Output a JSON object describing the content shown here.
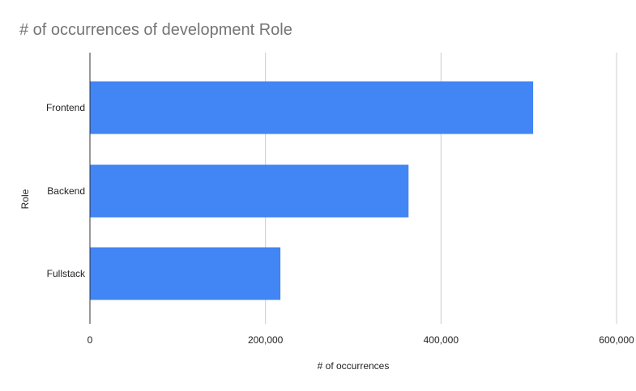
{
  "chart_data": {
    "type": "bar",
    "orientation": "horizontal",
    "title": "# of occurrences of development Role",
    "xlabel": "# of occurrences",
    "ylabel": "Role",
    "categories": [
      "Frontend",
      "Backend",
      "Fullstack"
    ],
    "values": [
      505000,
      363000,
      217000
    ],
    "xlim": [
      0,
      600000
    ],
    "xticks": [
      0,
      200000,
      400000,
      600000
    ],
    "xtick_labels": [
      "0",
      "200,000",
      "400,000",
      "600,000"
    ],
    "grid": true,
    "legend": "none",
    "colors": {
      "bar": "#4285f4",
      "grid": "#cccccc",
      "axis": "#333333",
      "title": "#757575",
      "text": "#222222"
    }
  }
}
